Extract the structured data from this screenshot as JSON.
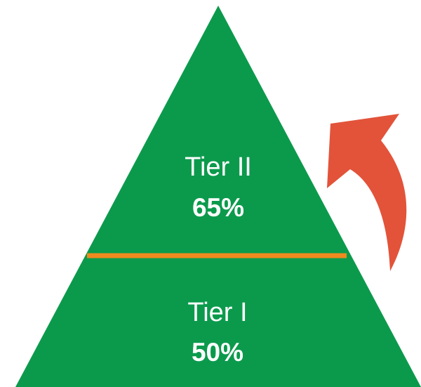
{
  "tiers": [
    {
      "name": "Tier II",
      "percent": "65%"
    },
    {
      "name": "Tier I",
      "percent": "50%"
    }
  ],
  "colors": {
    "pyramid": "#0b9a4c",
    "divider": "#f08a1f",
    "arrow": "#e2533a",
    "text": "#ffffff"
  }
}
